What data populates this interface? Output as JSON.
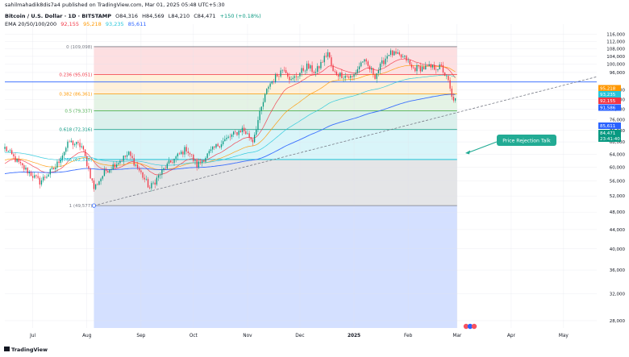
{
  "header": {
    "published_by": "sahilmahadik8dis7a4 published on TradingView.com, Mar 01, 2025 05:48 UTC+5:30",
    "symbol": "Bitcoin / U.S. Dollar · 1D · BITSTAMP",
    "open": "O84,316",
    "high": "H84,569",
    "low": "L84,210",
    "close": "C84,471",
    "change": "+150 (+0.18%)",
    "ema_label": "EMA 20/50/100/200",
    "ema_values": [
      "92,155",
      "95,218",
      "93,235",
      "85,611"
    ]
  },
  "footer": {
    "brand": "TradingView"
  },
  "annotation": {
    "text": "Price Rejection Talk"
  },
  "colors": {
    "ema20": "#f23645",
    "ema50": "#ff9800",
    "ema100": "#26c6da",
    "ema200": "#2962ff",
    "up": "#089981",
    "down": "#f23645",
    "trendline": "#787b86",
    "callout": "#22ab94"
  },
  "chart_data": {
    "type": "candlestick",
    "title": "Bitcoin / U.S. Dollar · 1D · BITSTAMP",
    "y_axis": {
      "side": "right",
      "scale": "log",
      "range": [
        27000,
        122000
      ],
      "ticks": [
        116000,
        112000,
        108000,
        104000,
        100000,
        96000,
        88000,
        84000,
        80000,
        76000,
        72000,
        68000,
        64000,
        60000,
        56000,
        52000,
        48000,
        44000,
        40000,
        36000,
        32000,
        28000
      ]
    },
    "x_axis": {
      "range": [
        "2024-06-15",
        "2025-05-20"
      ],
      "ticks": [
        {
          "label": "Jul",
          "date": "2024-07-01",
          "bold": false
        },
        {
          "label": "Aug",
          "date": "2024-08-01",
          "bold": false
        },
        {
          "label": "Sep",
          "date": "2024-09-01",
          "bold": false
        },
        {
          "label": "Oct",
          "date": "2024-10-01",
          "bold": false
        },
        {
          "label": "Nov",
          "date": "2024-11-01",
          "bold": false
        },
        {
          "label": "Dec",
          "date": "2024-12-01",
          "bold": false
        },
        {
          "label": "2025",
          "date": "2025-01-01",
          "bold": true
        },
        {
          "label": "Feb",
          "date": "2025-02-01",
          "bold": false
        },
        {
          "label": "Mar",
          "date": "2025-03-01",
          "bold": false
        },
        {
          "label": "Apr",
          "date": "2025-04-01",
          "bold": false
        },
        {
          "label": "May",
          "date": "2025-05-01",
          "bold": false
        }
      ]
    },
    "fibonacci": {
      "start_date": "2024-08-05",
      "end_date": "2025-03-01",
      "levels": [
        {
          "label": "0 (109,098)",
          "value": 109098,
          "color": "#787b86"
        },
        {
          "label": "0.236 (95,051)",
          "value": 95051,
          "color": "#f23645"
        },
        {
          "label": "0.382 (86,361)",
          "value": 86361,
          "color": "#ff9800"
        },
        {
          "label": "0.5 (79,337)",
          "value": 79337,
          "color": "#4caf50"
        },
        {
          "label": "0.618 (72,316)",
          "value": 72316,
          "color": "#089981"
        },
        {
          "label": "0.786 (62,316)",
          "value": 62316,
          "color": "#00bcd4"
        },
        {
          "label": "1 (49,577)",
          "value": 49577,
          "color": "#787b86"
        }
      ],
      "fills": [
        "#f2364529",
        "#ff980026",
        "#4caf5026",
        "#08998126",
        "#00bcd426",
        "#787b8633",
        "#2962ff33"
      ]
    },
    "horizontal_line": {
      "value": 91586,
      "color": "#2962ff"
    },
    "trendline": {
      "points": [
        {
          "date": "2024-08-05",
          "value": 49577
        },
        {
          "date": "2025-02-28",
          "value": 78500
        }
      ],
      "extend_to": "2025-05-20"
    },
    "price_labels": [
      {
        "value": "95,218",
        "color": "#ff9800"
      },
      {
        "value": "93,235",
        "color": "#26c6da"
      },
      {
        "value": "92,155",
        "color": "#f23645"
      },
      {
        "value": "91,586",
        "color": "#2962ff"
      },
      {
        "value": "85,611",
        "color": "#2962ff"
      },
      {
        "value": "84,471",
        "color": "#089981"
      },
      {
        "value": "23:41:40",
        "color": "#089981"
      }
    ],
    "series": [
      {
        "name": "EMA 20",
        "color": "#f23645"
      },
      {
        "name": "EMA 50",
        "color": "#ff9800"
      },
      {
        "name": "EMA 100",
        "color": "#26c6da"
      },
      {
        "name": "EMA 200",
        "color": "#2962ff"
      }
    ],
    "candle_anchors": [
      [
        "2024-06-15",
        66000
      ],
      [
        "2024-06-24",
        60500
      ],
      [
        "2024-07-05",
        55800
      ],
      [
        "2024-07-14",
        60000
      ],
      [
        "2024-07-22",
        68000
      ],
      [
        "2024-07-29",
        66500
      ],
      [
        "2024-08-05",
        54000
      ],
      [
        "2024-08-12",
        59000
      ],
      [
        "2024-08-25",
        64000
      ],
      [
        "2024-09-06",
        54000
      ],
      [
        "2024-09-15",
        60000
      ],
      [
        "2024-09-27",
        65800
      ],
      [
        "2024-10-03",
        60500
      ],
      [
        "2024-10-15",
        67000
      ],
      [
        "2024-10-29",
        72500
      ],
      [
        "2024-11-04",
        68500
      ],
      [
        "2024-11-13",
        90000
      ],
      [
        "2024-11-22",
        98500
      ],
      [
        "2024-11-26",
        92000
      ],
      [
        "2024-12-05",
        99000
      ],
      [
        "2024-12-10",
        96000
      ],
      [
        "2024-12-17",
        106000
      ],
      [
        "2024-12-20",
        96000
      ],
      [
        "2024-12-31",
        93500
      ],
      [
        "2025-01-06",
        102000
      ],
      [
        "2025-01-13",
        94500
      ],
      [
        "2025-01-21",
        106000
      ],
      [
        "2025-01-31",
        102500
      ],
      [
        "2025-02-03",
        98000
      ],
      [
        "2025-02-20",
        98500
      ],
      [
        "2025-02-24",
        91500
      ],
      [
        "2025-02-26",
        84500
      ],
      [
        "2025-02-28",
        84300
      ]
    ]
  }
}
